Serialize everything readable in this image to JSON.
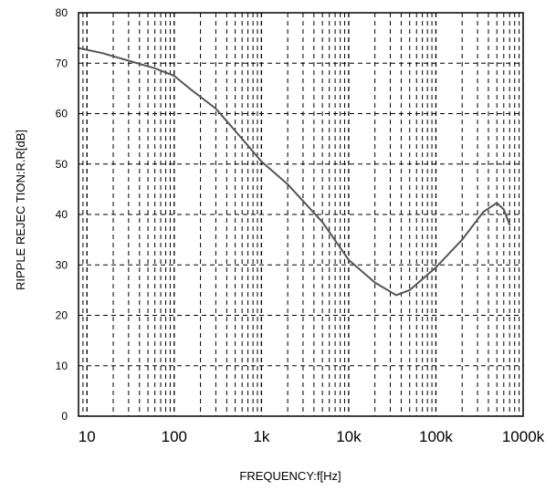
{
  "chart_data": {
    "type": "line",
    "title": "",
    "xlabel": "FREQUENCY:f[Hz]",
    "ylabel": "RIPPLE REJEC TION:R.R[dB]",
    "x_scale": "log",
    "xlim": [
      8,
      1000000
    ],
    "ylim": [
      0,
      80
    ],
    "x_ticks": [
      10,
      100,
      1000,
      10000,
      100000,
      1000000
    ],
    "x_tick_labels": [
      "10",
      "100",
      "1k",
      "10k",
      "100k",
      "1000k"
    ],
    "y_ticks": [
      0,
      10,
      20,
      30,
      40,
      50,
      60,
      70,
      80
    ],
    "y_tick_labels": [
      "0",
      "10",
      "20",
      "30",
      "40",
      "50",
      "60",
      "70",
      "80"
    ],
    "grid": true,
    "line_color": "#555555",
    "series": [
      {
        "x": [
          8,
          15,
          30,
          60,
          100,
          150,
          300,
          600,
          1000,
          2000,
          5000,
          10000,
          20000,
          35000,
          50000,
          100000,
          200000,
          350000,
          500000,
          600000,
          700000
        ],
        "y": [
          73,
          72,
          70.5,
          69,
          67.5,
          65,
          61,
          55,
          50.5,
          46,
          38.5,
          31,
          26.5,
          24,
          25,
          29.5,
          35,
          40.5,
          42.3,
          41,
          38
        ]
      }
    ]
  }
}
